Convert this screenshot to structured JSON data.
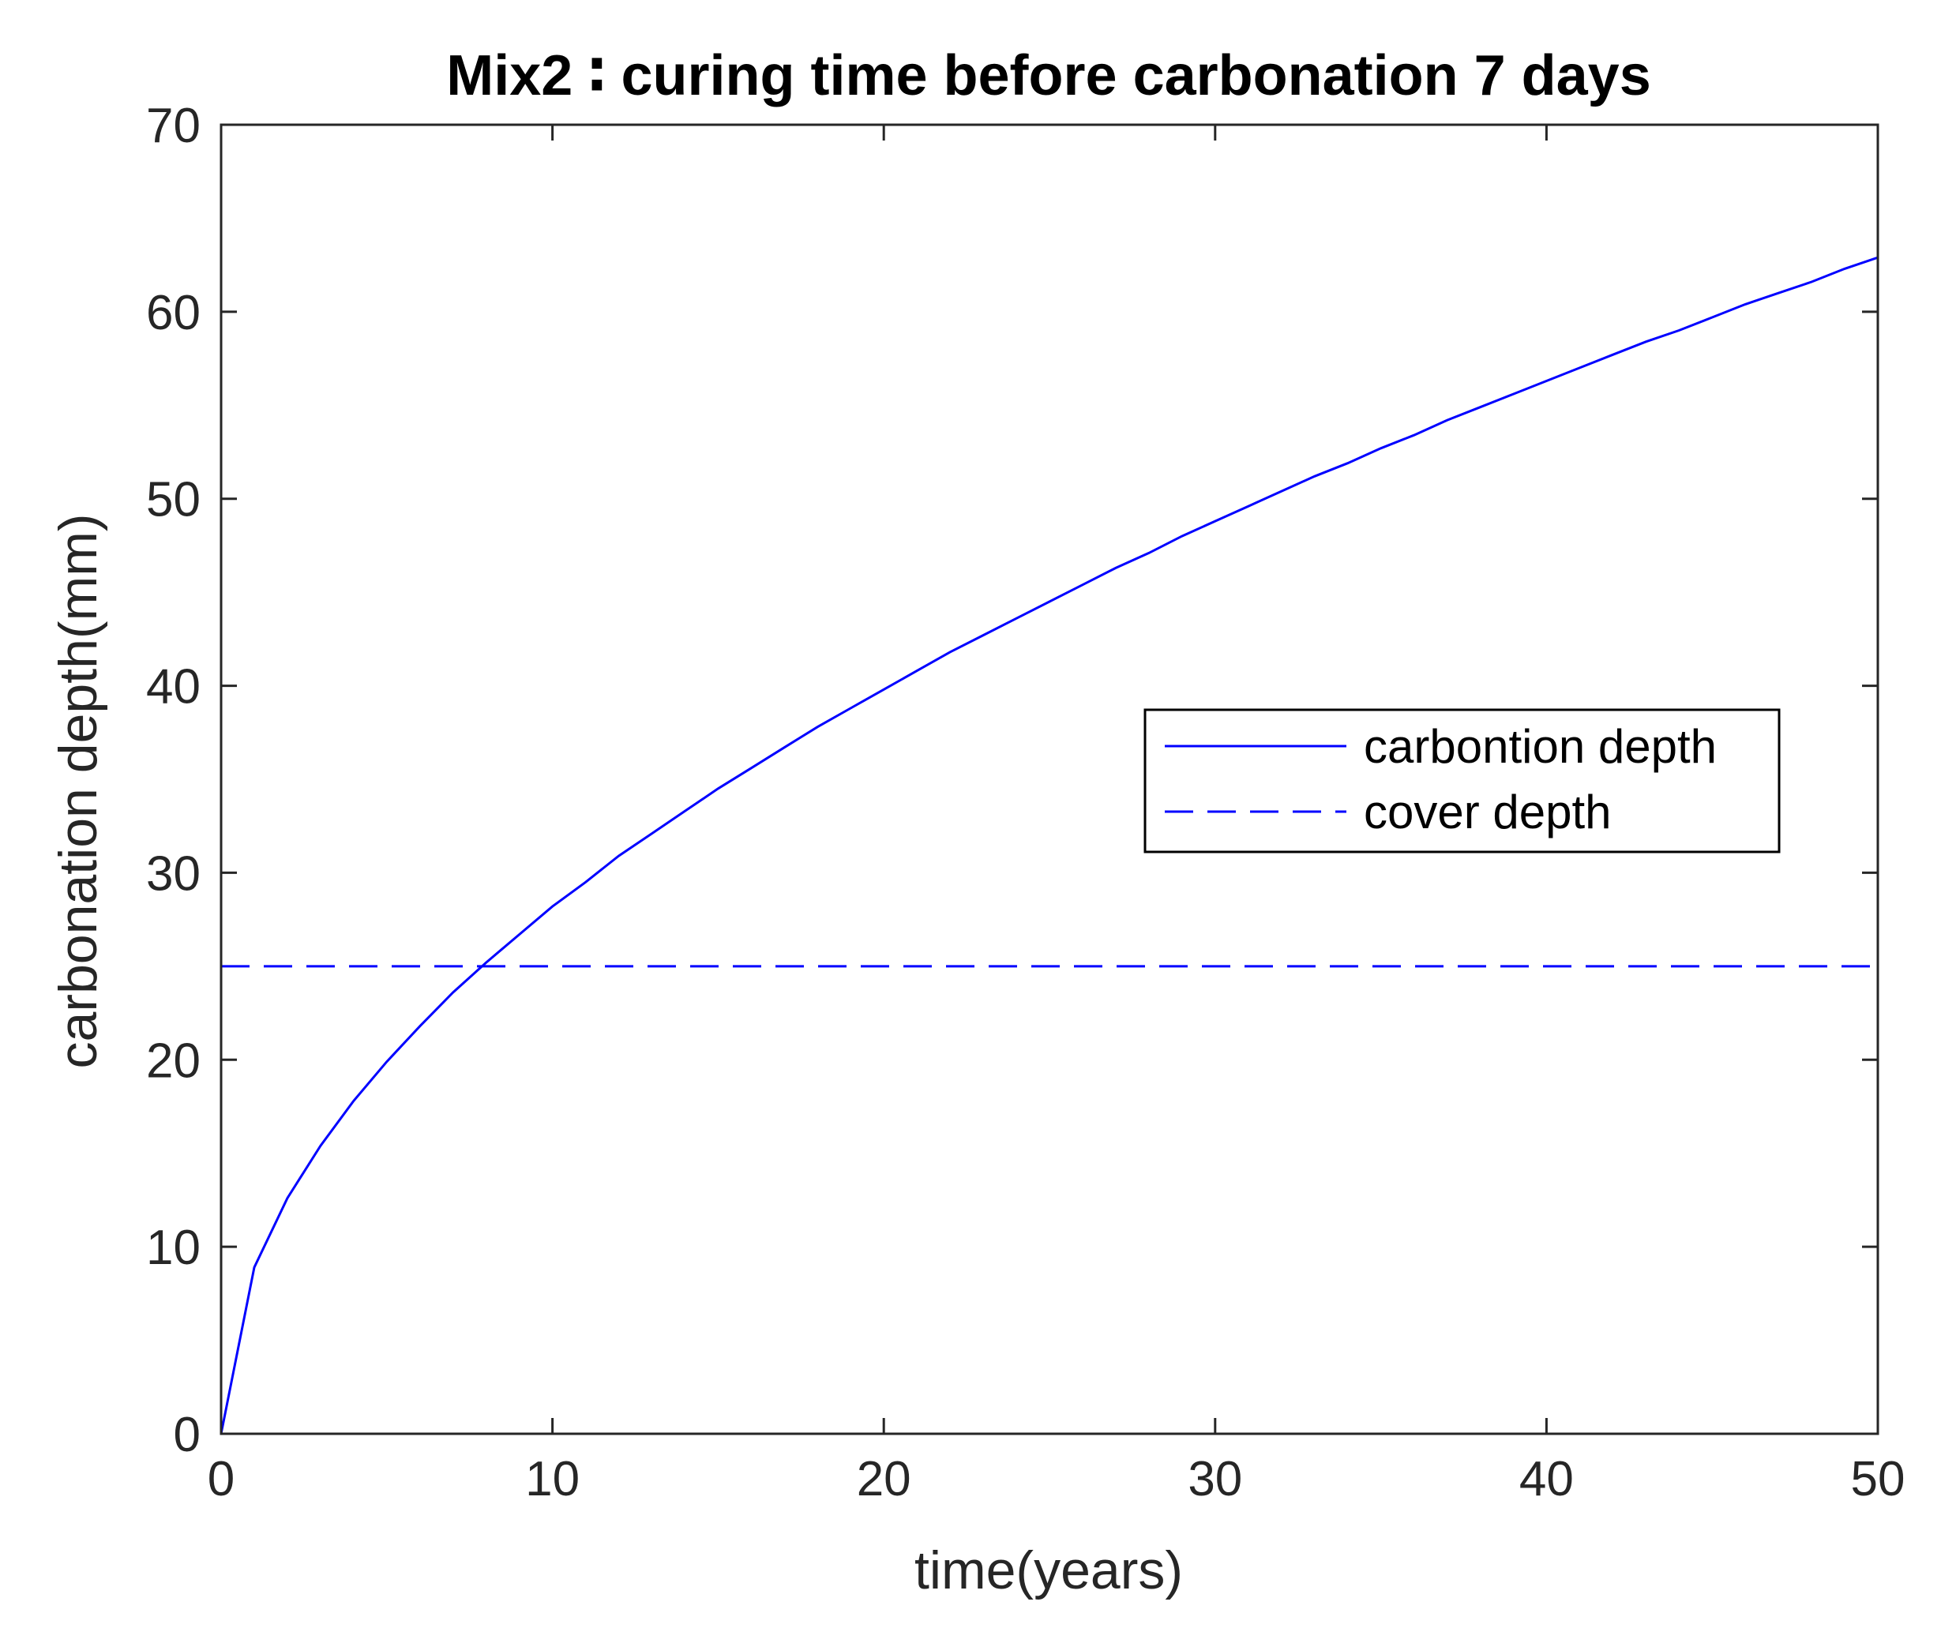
{
  "chart_data": {
    "type": "line",
    "title": "Mix2  ∶ curing time before carbonation 7 days",
    "xlabel": "time(years)",
    "ylabel": "carbonation depth(mm)",
    "xlim": [
      0,
      50
    ],
    "ylim": [
      0,
      70
    ],
    "xticks": [
      0,
      10,
      20,
      30,
      40,
      50
    ],
    "yticks": [
      0,
      10,
      20,
      30,
      40,
      50,
      60,
      70
    ],
    "xtick_labels": [
      "0",
      "10",
      "20",
      "30",
      "40",
      "50"
    ],
    "ytick_labels": [
      "0",
      "10",
      "20",
      "30",
      "40",
      "50",
      "60",
      "70"
    ],
    "grid": false,
    "legend_position": "center-right",
    "series": [
      {
        "name": "carbontion depth",
        "style": "solid",
        "color": "#0000ff",
        "x": [
          0,
          1,
          2,
          3,
          4,
          5,
          6,
          7,
          8,
          9,
          10,
          11,
          12,
          13,
          14,
          15,
          16,
          17,
          18,
          19,
          20,
          21,
          22,
          23,
          24,
          25,
          26,
          27,
          28,
          29,
          30,
          31,
          32,
          33,
          34,
          35,
          36,
          37,
          38,
          39,
          40,
          41,
          42,
          43,
          44,
          45,
          46,
          47,
          48,
          49,
          50
        ],
        "y": [
          0,
          8.9,
          12.6,
          15.4,
          17.8,
          19.9,
          21.8,
          23.6,
          25.2,
          26.7,
          28.2,
          29.5,
          30.9,
          32.1,
          33.3,
          34.5,
          35.6,
          36.7,
          37.8,
          38.8,
          39.8,
          40.8,
          41.8,
          42.7,
          43.6,
          44.5,
          45.4,
          46.3,
          47.1,
          48.0,
          48.8,
          49.6,
          50.4,
          51.2,
          51.9,
          52.7,
          53.4,
          54.2,
          54.9,
          55.6,
          56.3,
          57.0,
          57.7,
          58.4,
          59.0,
          59.7,
          60.4,
          61.0,
          61.6,
          62.3,
          62.9
        ]
      },
      {
        "name": "cover depth",
        "style": "dashed",
        "color": "#0000ff",
        "x": [
          0,
          50
        ],
        "y": [
          25,
          25
        ]
      }
    ]
  }
}
